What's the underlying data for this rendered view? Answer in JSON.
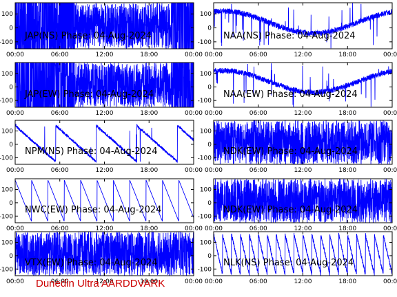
{
  "footer": "Dunedin Ultra AARDDVARK",
  "colors": {
    "trace": "#0000ff",
    "axis": "#000000",
    "footer": "#cc0000"
  },
  "chart_data": [
    {
      "type": "line",
      "title": "JAP(NS) Phase: 04-Aug-2024",
      "style": "saturated",
      "xticks": [
        "00:00",
        "06:00",
        "12:00",
        "18:00",
        "00:00"
      ],
      "yticks": [
        100,
        0,
        -100
      ],
      "ylim": [
        -150,
        180
      ],
      "xlim": [
        0,
        24
      ]
    },
    {
      "type": "line",
      "title": "NAA(NS) Phase: 04-Aug-2024",
      "style": "drift",
      "xticks": [
        "00:00",
        "06:00",
        "12:00",
        "18:00",
        "00:00"
      ],
      "yticks": [
        100,
        0,
        -100
      ],
      "ylim": [
        -150,
        180
      ],
      "xlim": [
        0,
        24
      ]
    },
    {
      "type": "line",
      "title": "JAP(EW) Phase: 04-Aug-2024",
      "style": "saturated",
      "xticks": [
        "00:00",
        "06:00",
        "12:00",
        "18:00",
        "00:00"
      ],
      "yticks": [
        100,
        0,
        -100
      ],
      "ylim": [
        -150,
        180
      ],
      "xlim": [
        0,
        24
      ]
    },
    {
      "type": "line",
      "title": "NAA(EW) Phase: 04-Aug-2024",
      "style": "drift",
      "xticks": [
        "00:00",
        "06:00",
        "12:00",
        "18:00",
        "00:00"
      ],
      "yticks": [
        100,
        0,
        -100
      ],
      "ylim": [
        -150,
        180
      ],
      "xlim": [
        0,
        24
      ]
    },
    {
      "type": "line",
      "title": "NPM(NS) Phase: 04-Aug-2024",
      "style": "sparse",
      "xticks": [
        "00:00",
        "06:00",
        "12:00",
        "18:00",
        "00:00"
      ],
      "yticks": [
        100,
        0,
        -100
      ],
      "ylim": [
        -150,
        180
      ],
      "xlim": [
        0,
        24
      ]
    },
    {
      "type": "line",
      "title": "NDK(EW) Phase: 04-Aug-2024",
      "style": "noisy",
      "xticks": [
        "00:00",
        "06:00",
        "12:00",
        "18:00",
        "00:00"
      ],
      "yticks": [
        100,
        0,
        -100
      ],
      "ylim": [
        -150,
        180
      ],
      "xlim": [
        0,
        24
      ]
    },
    {
      "type": "line",
      "title": "NWC(EW) Phase: 04-Aug-2024",
      "style": "sawtooth",
      "xticks": [
        "00:00",
        "06:00",
        "12:00",
        "18:00",
        "00:00"
      ],
      "yticks": [
        100,
        0,
        -100
      ],
      "ylim": [
        -150,
        180
      ],
      "xlim": [
        0,
        24
      ]
    },
    {
      "type": "line",
      "title": "NDK(EW) Phase: 04-Aug-2024",
      "style": "noisy",
      "xticks": [
        "00:00",
        "06:00",
        "12:00",
        "18:00",
        "00:00"
      ],
      "yticks": [
        100,
        0,
        -100
      ],
      "ylim": [
        -150,
        180
      ],
      "xlim": [
        0,
        24
      ]
    },
    {
      "type": "line",
      "title": "VTX(EW) Phase: 04-Aug-2024",
      "style": "noisy",
      "xticks": [
        "00:00",
        "06:00",
        "12:00",
        "18:00",
        "00:00"
      ],
      "yticks": [
        100,
        0,
        -100
      ],
      "ylim": [
        -150,
        180
      ],
      "xlim": [
        0,
        24
      ]
    },
    {
      "type": "line",
      "title": "NLK(NS) Phase: 04-Aug-2024",
      "style": "fastsaw",
      "xticks": [
        "00:00",
        "06:00",
        "12:00",
        "18:00",
        "00:00"
      ],
      "yticks": [
        100,
        0,
        -100
      ],
      "ylim": [
        -150,
        180
      ],
      "xlim": [
        0,
        24
      ]
    }
  ]
}
